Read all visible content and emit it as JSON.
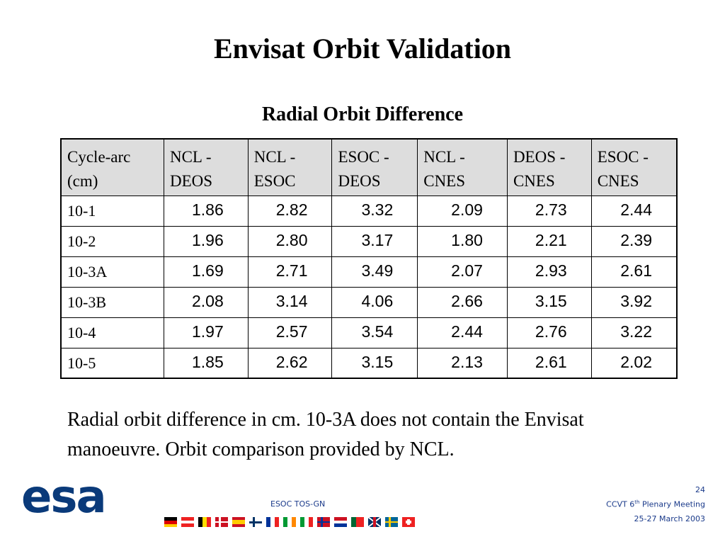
{
  "title": "Envisat Orbit Validation",
  "subtitle": "Radial Orbit Difference",
  "table": {
    "header": [
      "Cycle-arc (cm)",
      "NCL - DEOS",
      "NCL - ESOC",
      "ESOC - DEOS",
      "NCL - CNES",
      "DEOS - CNES",
      "ESOC - CNES"
    ],
    "rows": [
      [
        "10-1",
        "1.86",
        "2.82",
        "3.32",
        "2.09",
        "2.73",
        "2.44"
      ],
      [
        "10-2",
        "1.96",
        "2.80",
        "3.17",
        "1.80",
        "2.21",
        "2.39"
      ],
      [
        "10-3A",
        "1.69",
        "2.71",
        "3.49",
        "2.07",
        "2.93",
        "2.61"
      ],
      [
        "10-3B",
        "2.08",
        "3.14",
        "4.06",
        "2.66",
        "3.15",
        "3.92"
      ],
      [
        "10-4",
        "1.97",
        "2.57",
        "3.54",
        "2.44",
        "2.76",
        "3.22"
      ],
      [
        "10-5",
        "1.85",
        "2.62",
        "3.15",
        "2.13",
        "2.61",
        "2.02"
      ]
    ]
  },
  "caption": "Radial orbit difference in cm. 10-3A does not contain the Envisat manoeuvre. Orbit comparison provided by NCL.",
  "footer": {
    "logo": "esa",
    "center": "ESOC TOS-GN",
    "page": "24",
    "meeting_prefix": "CCVT 6",
    "meeting_sup": "th",
    "meeting_suffix": " Plenary Meeting",
    "date": "25-27 March 2003"
  }
}
